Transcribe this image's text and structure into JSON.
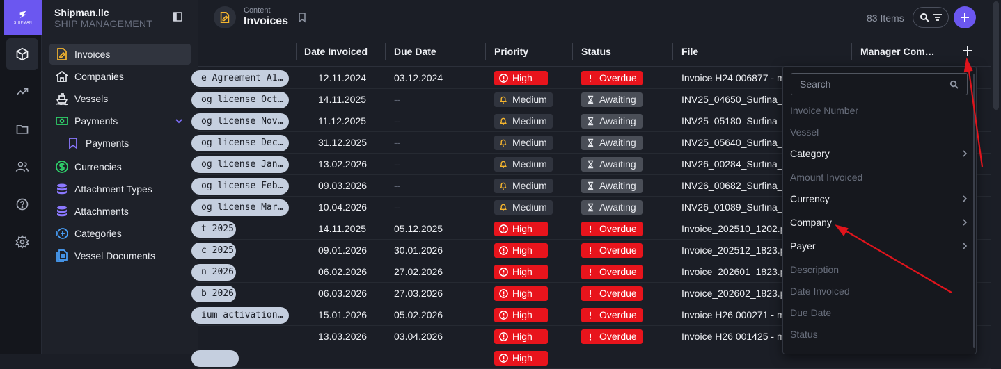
{
  "brand": {
    "name": "Shipman.llc",
    "subtitle": "SHIP MANAGEMENT",
    "logo_word": "SHIPMAN"
  },
  "rail": [
    "box-icon",
    "trend-icon",
    "folder-icon",
    "users-icon",
    "help-icon",
    "settings-icon"
  ],
  "nav": [
    {
      "label": "Invoices",
      "icon": "invoice-icon",
      "active": true
    },
    {
      "label": "Companies",
      "icon": "building-icon"
    },
    {
      "label": "Vessels",
      "icon": "ship-icon"
    },
    {
      "label": "Payments",
      "icon": "money-icon",
      "expanded": true
    },
    {
      "label": "Payments",
      "icon": "bookmark-icon",
      "sub": true
    },
    {
      "label": "Currencies",
      "icon": "currency-icon"
    },
    {
      "label": "Attachment Types",
      "icon": "database-icon"
    },
    {
      "label": "Attachments",
      "icon": "database-icon"
    },
    {
      "label": "Categories",
      "icon": "plus-circle-icon"
    },
    {
      "label": "Vessel Documents",
      "icon": "document-icon"
    }
  ],
  "header": {
    "crumb": "Content",
    "title": "Invoices",
    "count": "83 Items"
  },
  "columns": [
    "Date Invoiced",
    "Due Date",
    "Priority",
    "Status",
    "File",
    "Manager Com…"
  ],
  "rows": [
    {
      "category": "e Agreement A1…",
      "date": "12.11.2024",
      "due": "03.12.2024",
      "priority": "High",
      "status": "Overdue",
      "file": "Invoice H24 006877 - m"
    },
    {
      "category": "og license Oct…",
      "date": "14.11.2025",
      "due": "--",
      "priority": "Medium",
      "status": "Awaiting",
      "file": "INV25_04650_Surfina_T"
    },
    {
      "category": "og license Nov…",
      "date": "11.12.2025",
      "due": "--",
      "priority": "Medium",
      "status": "Awaiting",
      "file": "INV25_05180_Surfina_T"
    },
    {
      "category": "og license Dec…",
      "date": "31.12.2025",
      "due": "--",
      "priority": "Medium",
      "status": "Awaiting",
      "file": "INV25_05640_Surfina_T"
    },
    {
      "category": "og license Jan…",
      "date": "13.02.2026",
      "due": "--",
      "priority": "Medium",
      "status": "Awaiting",
      "file": "INV26_00284_Surfina_T"
    },
    {
      "category": "og license Feb…",
      "date": "09.03.2026",
      "due": "--",
      "priority": "Medium",
      "status": "Awaiting",
      "file": "INV26_00682_Surfina_T"
    },
    {
      "category": "og license Mar…",
      "date": "10.04.2026",
      "due": "--",
      "priority": "Medium",
      "status": "Awaiting",
      "file": "INV26_01089_Surfina_T"
    },
    {
      "category": "t 2025",
      "date": "14.11.2025",
      "due": "05.12.2025",
      "priority": "High",
      "status": "Overdue",
      "file": "Invoice_202510_1202.pc"
    },
    {
      "category": "c 2025",
      "date": "09.01.2026",
      "due": "30.01.2026",
      "priority": "High",
      "status": "Overdue",
      "file": "Invoice_202512_1823.pc"
    },
    {
      "category": "n 2026",
      "date": "06.02.2026",
      "due": "27.02.2026",
      "priority": "High",
      "status": "Overdue",
      "file": "Invoice_202601_1823.pc"
    },
    {
      "category": "b 2026",
      "date": "06.03.2026",
      "due": "27.03.2026",
      "priority": "High",
      "status": "Overdue",
      "file": "Invoice_202602_1823.pc"
    },
    {
      "category": "ium activation…",
      "date": "15.01.2026",
      "due": "05.02.2026",
      "priority": "High",
      "status": "Overdue",
      "file": "Invoice H26 000271 - m"
    },
    {
      "category": "",
      "date": "13.03.2026",
      "due": "03.04.2026",
      "priority": "High",
      "status": "Overdue",
      "file": "Invoice H26 001425 - m"
    },
    {
      "category": " ",
      "date": "",
      "due": "",
      "priority": "High",
      "status": "",
      "file": ""
    }
  ],
  "column_menu": {
    "search_placeholder": "Search",
    "items": [
      {
        "label": "Invoice Number",
        "enabled": false
      },
      {
        "label": "Vessel",
        "enabled": false
      },
      {
        "label": "Category",
        "enabled": true,
        "submenu": true
      },
      {
        "label": "Amount Invoiced",
        "enabled": false
      },
      {
        "label": "Currency",
        "enabled": true,
        "submenu": true
      },
      {
        "label": "Company",
        "enabled": true,
        "submenu": true
      },
      {
        "label": "Payer",
        "enabled": true,
        "submenu": true
      },
      {
        "label": "Description",
        "enabled": false
      },
      {
        "label": "Date Invoiced",
        "enabled": false
      },
      {
        "label": "Due Date",
        "enabled": false
      },
      {
        "label": "Status",
        "enabled": false
      }
    ]
  },
  "colors": {
    "accent": "#6b57f0",
    "danger": "#e8141c",
    "annotation": "#e0141c",
    "priority_medium_icon": "#f5b52e"
  }
}
